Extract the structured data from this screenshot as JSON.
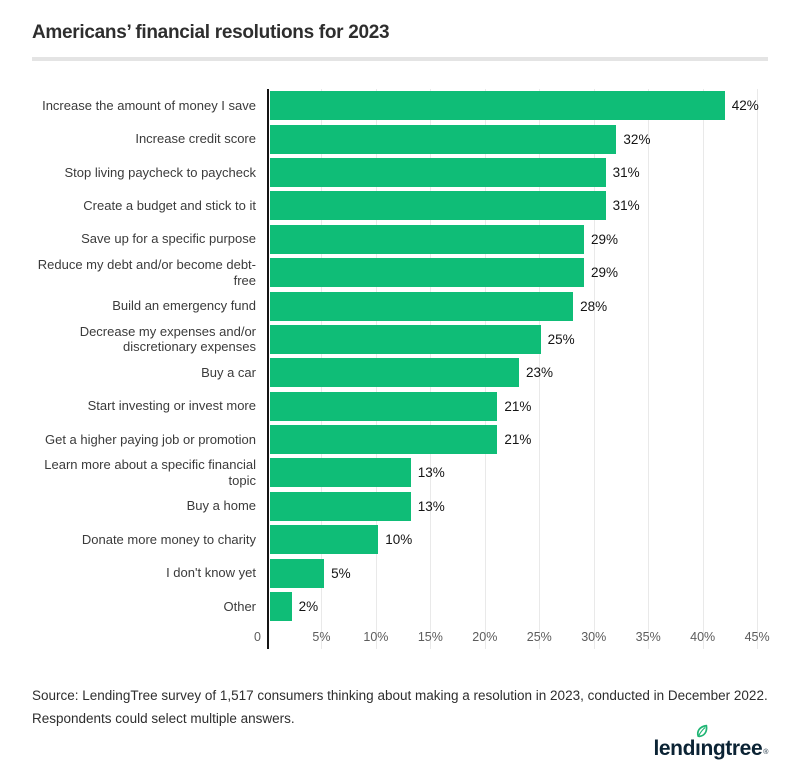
{
  "header": {
    "title": "Americans’ financial resolutions for 2023"
  },
  "chart_data": {
    "type": "bar",
    "orientation": "horizontal",
    "title": "Americans’ financial resolutions for 2023",
    "xlabel": "",
    "ylabel": "",
    "categories": [
      "Increase the amount of money I save",
      "Increase credit score",
      "Stop living paycheck to paycheck",
      "Create a budget and stick to it",
      "Save up for a specific purpose",
      "Reduce my debt and/or become debt-free",
      "Build an emergency fund",
      "Decrease my expenses and/or discretionary expenses",
      "Buy a car",
      "Start investing or invest more",
      "Get a higher paying job or promotion",
      "Learn more about a specific financial topic",
      "Buy a home",
      "Donate more money to charity",
      "I don't know yet",
      "Other"
    ],
    "values": [
      42,
      32,
      31,
      31,
      29,
      29,
      28,
      25,
      23,
      21,
      21,
      13,
      13,
      10,
      5,
      2
    ],
    "value_labels": [
      "42%",
      "32%",
      "31%",
      "31%",
      "29%",
      "29%",
      "28%",
      "25%",
      "23%",
      "21%",
      "21%",
      "13%",
      "13%",
      "10%",
      "5%",
      "2%"
    ],
    "x_ticks": [
      {
        "value": 0,
        "label": "0"
      },
      {
        "value": 5,
        "label": "5%"
      },
      {
        "value": 10,
        "label": "10%"
      },
      {
        "value": 15,
        "label": "15%"
      },
      {
        "value": 20,
        "label": "20%"
      },
      {
        "value": 25,
        "label": "25%"
      },
      {
        "value": 30,
        "label": "30%"
      },
      {
        "value": 35,
        "label": "35%"
      },
      {
        "value": 40,
        "label": "40%"
      },
      {
        "value": 45,
        "label": "45%"
      }
    ],
    "xlim": [
      0,
      45
    ],
    "plot_max": 46,
    "grid": "vertical",
    "legend": "none",
    "colors": {
      "bar": "#0fbd77",
      "axis": "#141414",
      "gridline": "#e9e9e9",
      "category_text": "#3b3b3b",
      "value_text": "#141414",
      "tick_text": "#5c5c5c"
    }
  },
  "footer": {
    "source_line1": "Source: LendingTree survey of 1,517 consumers thinking about making a resolution in 2023, conducted in December 2022.",
    "source_line2": "Respondents could select multiple answers.",
    "logo": {
      "text_pre": "lend",
      "text_i": "ı",
      "text_post": "ngtree",
      "registered": "®",
      "navy": "#0b2334",
      "leaf_green": "#1fb574"
    }
  }
}
